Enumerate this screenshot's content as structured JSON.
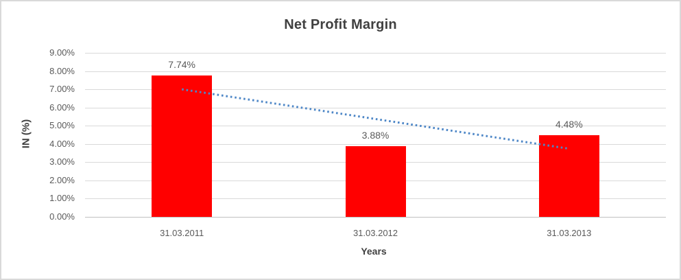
{
  "frame": {
    "background": "#ffffff",
    "border_color": "#d9d9d9"
  },
  "chart_data": {
    "type": "bar",
    "title": "Net Profit Margin",
    "categories": [
      "31.03.2011",
      "31.03.2012",
      "31.03.2013"
    ],
    "series": [
      {
        "name": "Net Profit Margin",
        "values": [
          7.74,
          3.88,
          4.48
        ],
        "color": "#ff0000",
        "data_labels": [
          "7.74%",
          "3.88%",
          "4.48%"
        ]
      }
    ],
    "trendline": {
      "type": "linear",
      "style": "dotted",
      "color": "#4e87c7",
      "start_value": 7.0,
      "end_value": 3.74
    },
    "xlabel": "Years",
    "ylabel": "IN (%)",
    "ylim": [
      0,
      9
    ],
    "ytick_step": 1,
    "yticks": [
      "0.00%",
      "1.00%",
      "2.00%",
      "3.00%",
      "4.00%",
      "5.00%",
      "6.00%",
      "7.00%",
      "8.00%",
      "9.00%"
    ],
    "grid": true,
    "legend": "none"
  },
  "colors": {
    "title_text": "#404040",
    "axis_title_text": "#404040",
    "tick_text": "#595959",
    "data_label_text": "#595959",
    "gridline": "#d9d9d9",
    "axis_line": "#bfbfbf"
  }
}
